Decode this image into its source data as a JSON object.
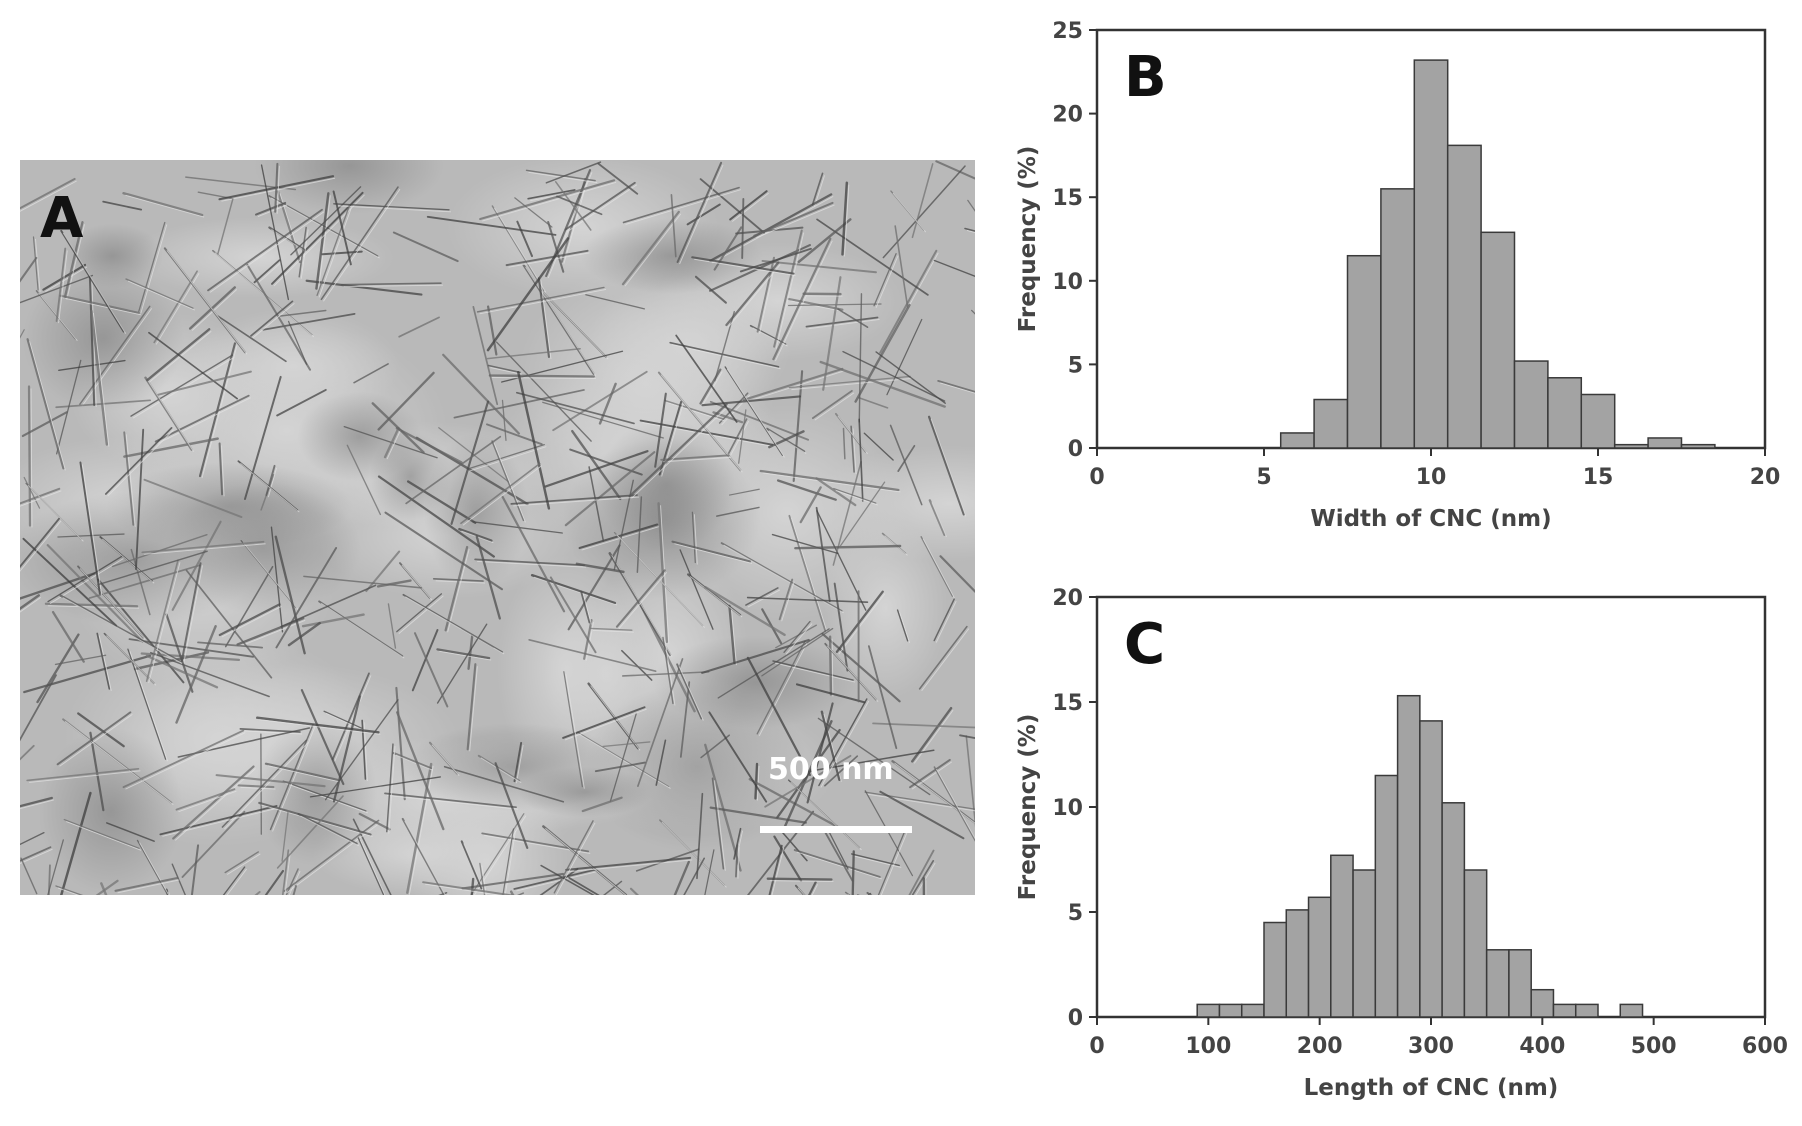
{
  "panel_a": {
    "letter": "A",
    "scale_label": "500 nm"
  },
  "chart_data": [
    {
      "type": "bar",
      "panel": "B",
      "xlabel": "Width of CNC (nm)",
      "ylabel": "Frequency  (%)",
      "xlim": [
        0,
        20
      ],
      "ylim": [
        0,
        25
      ],
      "xticks": [
        0,
        5,
        10,
        15,
        20
      ],
      "yticks": [
        0,
        5,
        10,
        15,
        20,
        25
      ],
      "bin_width": 1,
      "bin_starts": [
        5.5,
        6.5,
        7.5,
        8.5,
        9.5,
        10.5,
        11.5,
        12.5,
        13.5,
        14.5,
        15.5,
        16.5,
        17.5
      ],
      "values": [
        0.9,
        2.9,
        11.5,
        15.5,
        23.2,
        18.1,
        12.9,
        5.2,
        4.2,
        3.2,
        0.2,
        0.6,
        0.2
      ],
      "bar_color": "#a3a3a3"
    },
    {
      "type": "bar",
      "panel": "C",
      "xlabel": "Length of CNC (nm)",
      "ylabel": "Frequency  (%)",
      "xlim": [
        0,
        600
      ],
      "ylim": [
        0,
        20
      ],
      "xticks": [
        0,
        100,
        200,
        300,
        400,
        500,
        600
      ],
      "yticks": [
        0,
        5,
        10,
        15,
        20
      ],
      "bin_width": 20,
      "bin_starts": [
        90,
        110,
        130,
        150,
        170,
        190,
        210,
        230,
        250,
        270,
        290,
        310,
        330,
        350,
        370,
        390,
        410,
        430,
        470
      ],
      "values": [
        0.6,
        0.6,
        0.6,
        4.5,
        5.1,
        5.7,
        7.7,
        7.0,
        11.5,
        15.3,
        14.1,
        10.2,
        7.0,
        3.2,
        3.2,
        1.3,
        0.6,
        0.6,
        0.6
      ],
      "bar_color": "#a3a3a3"
    }
  ]
}
